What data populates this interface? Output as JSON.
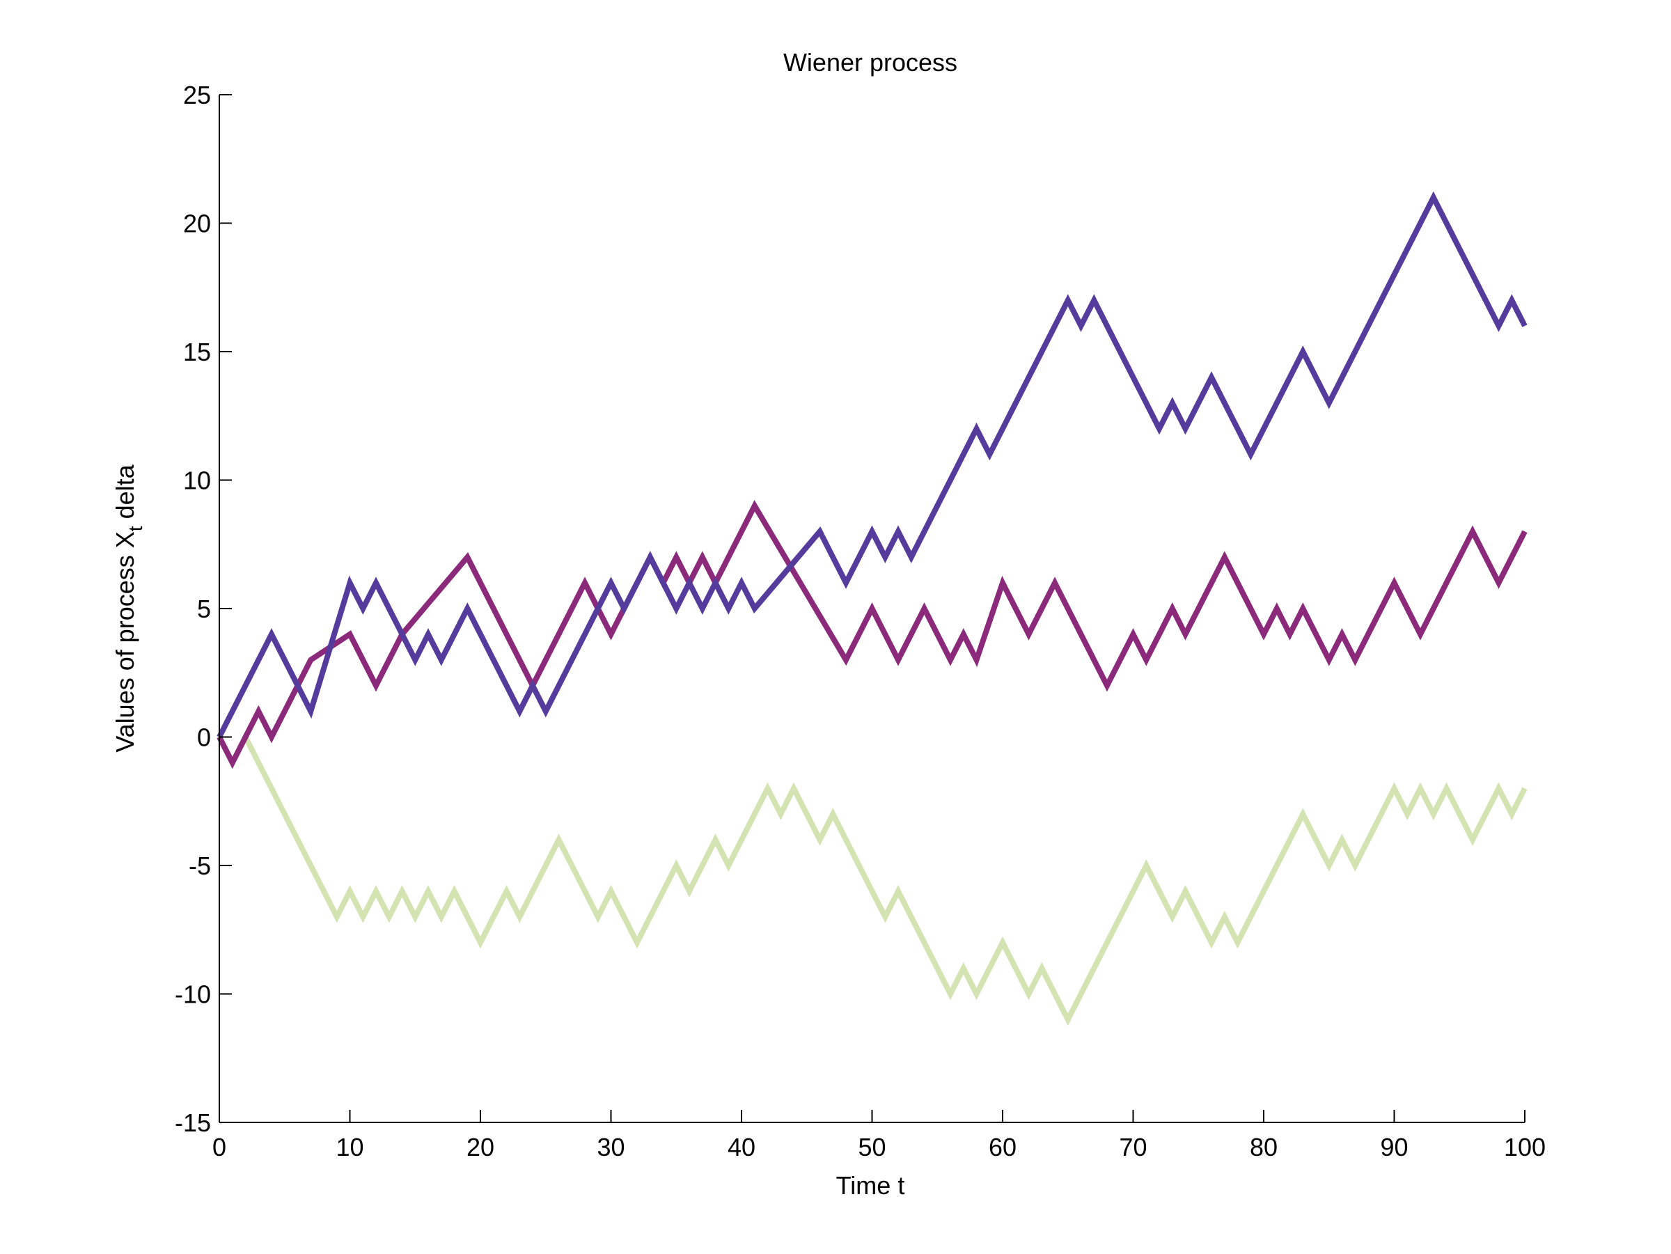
{
  "chart_data": {
    "type": "line",
    "title": "Wiener process",
    "xlabel": "Time t",
    "ylabel": {
      "prefix": "Values of process X",
      "subscript": "t",
      "suffix": " delta"
    },
    "xlim": [
      0,
      100
    ],
    "ylim": [
      -15,
      25
    ],
    "xticks": [
      0,
      10,
      20,
      30,
      40,
      50,
      60,
      70,
      80,
      90,
      100
    ],
    "yticks": [
      -15,
      -10,
      -5,
      0,
      5,
      10,
      15,
      20,
      25
    ],
    "xtick_labels": [
      "0",
      "10",
      "20",
      "30",
      "40",
      "50",
      "60",
      "70",
      "80",
      "90",
      "100"
    ],
    "ytick_labels": [
      "-15",
      "-10",
      "-5",
      "0",
      "5",
      "10",
      "15",
      "20",
      "25"
    ],
    "grid": false,
    "legend": "none",
    "series": [
      {
        "color": "#d4e3b2",
        "points": [
          [
            0,
            0
          ],
          [
            1,
            -1
          ],
          [
            2,
            0
          ],
          [
            9,
            -7
          ],
          [
            10,
            -6
          ],
          [
            11,
            -7
          ],
          [
            12,
            -6
          ],
          [
            13,
            -7
          ],
          [
            14,
            -6
          ],
          [
            15,
            -7
          ],
          [
            16,
            -6
          ],
          [
            17,
            -7
          ],
          [
            18,
            -6
          ],
          [
            20,
            -8
          ],
          [
            22,
            -6
          ],
          [
            23,
            -7
          ],
          [
            26,
            -4
          ],
          [
            29,
            -7
          ],
          [
            30,
            -6
          ],
          [
            32,
            -8
          ],
          [
            35,
            -5
          ],
          [
            36,
            -6
          ],
          [
            38,
            -4
          ],
          [
            39,
            -5
          ],
          [
            42,
            -2
          ],
          [
            43,
            -3
          ],
          [
            44,
            -2
          ],
          [
            46,
            -4
          ],
          [
            47,
            -3
          ],
          [
            51,
            -7
          ],
          [
            52,
            -6
          ],
          [
            56,
            -10
          ],
          [
            57,
            -9
          ],
          [
            58,
            -10
          ],
          [
            60,
            -8
          ],
          [
            62,
            -10
          ],
          [
            63,
            -9
          ],
          [
            65,
            -11
          ],
          [
            71,
            -5
          ],
          [
            73,
            -7
          ],
          [
            74,
            -6
          ],
          [
            76,
            -8
          ],
          [
            77,
            -7
          ],
          [
            78,
            -8
          ],
          [
            83,
            -3
          ],
          [
            85,
            -5
          ],
          [
            86,
            -4
          ],
          [
            87,
            -5
          ],
          [
            90,
            -2
          ],
          [
            91,
            -3
          ],
          [
            92,
            -2
          ],
          [
            93,
            -3
          ],
          [
            94,
            -2
          ],
          [
            96,
            -4
          ],
          [
            98,
            -2
          ],
          [
            99,
            -3
          ],
          [
            100,
            -2
          ]
        ]
      },
      {
        "color": "#8b2a7a",
        "points": [
          [
            0,
            0
          ],
          [
            1,
            -1
          ],
          [
            3,
            1
          ],
          [
            4,
            0
          ],
          [
            7,
            3
          ],
          [
            10,
            4
          ],
          [
            12,
            2
          ],
          [
            14,
            4
          ],
          [
            19,
            7
          ],
          [
            24,
            2
          ],
          [
            28,
            6
          ],
          [
            30,
            4
          ],
          [
            33,
            7
          ],
          [
            34,
            6
          ],
          [
            35,
            7
          ],
          [
            36,
            6
          ],
          [
            37,
            7
          ],
          [
            38,
            6
          ],
          [
            41,
            9
          ],
          [
            48,
            3
          ],
          [
            50,
            5
          ],
          [
            52,
            3
          ],
          [
            54,
            5
          ],
          [
            56,
            3
          ],
          [
            57,
            4
          ],
          [
            58,
            3
          ],
          [
            60,
            6
          ],
          [
            62,
            4
          ],
          [
            64,
            6
          ],
          [
            68,
            2
          ],
          [
            70,
            4
          ],
          [
            71,
            3
          ],
          [
            73,
            5
          ],
          [
            74,
            4
          ],
          [
            77,
            7
          ],
          [
            80,
            4
          ],
          [
            81,
            5
          ],
          [
            82,
            4
          ],
          [
            83,
            5
          ],
          [
            85,
            3
          ],
          [
            86,
            4
          ],
          [
            87,
            3
          ],
          [
            90,
            6
          ],
          [
            92,
            4
          ],
          [
            96,
            8
          ],
          [
            98,
            6
          ],
          [
            100,
            8
          ]
        ]
      },
      {
        "color": "#553c9c",
        "points": [
          [
            0,
            0
          ],
          [
            4,
            4
          ],
          [
            7,
            1
          ],
          [
            10,
            6
          ],
          [
            11,
            5
          ],
          [
            12,
            6
          ],
          [
            15,
            3
          ],
          [
            16,
            4
          ],
          [
            17,
            3
          ],
          [
            19,
            5
          ],
          [
            23,
            1
          ],
          [
            24,
            2
          ],
          [
            25,
            1
          ],
          [
            30,
            6
          ],
          [
            31,
            5
          ],
          [
            33,
            7
          ],
          [
            35,
            5
          ],
          [
            36,
            6
          ],
          [
            37,
            5
          ],
          [
            38,
            6
          ],
          [
            39,
            5
          ],
          [
            40,
            6
          ],
          [
            41,
            5
          ],
          [
            46,
            8
          ],
          [
            48,
            6
          ],
          [
            50,
            8
          ],
          [
            51,
            7
          ],
          [
            52,
            8
          ],
          [
            53,
            7
          ],
          [
            58,
            12
          ],
          [
            59,
            11
          ],
          [
            65,
            17
          ],
          [
            66,
            16
          ],
          [
            67,
            17
          ],
          [
            72,
            12
          ],
          [
            73,
            13
          ],
          [
            74,
            12
          ],
          [
            76,
            14
          ],
          [
            79,
            11
          ],
          [
            83,
            15
          ],
          [
            85,
            13
          ],
          [
            93,
            21
          ],
          [
            98,
            16
          ],
          [
            99,
            17
          ],
          [
            100,
            16
          ]
        ]
      }
    ]
  }
}
